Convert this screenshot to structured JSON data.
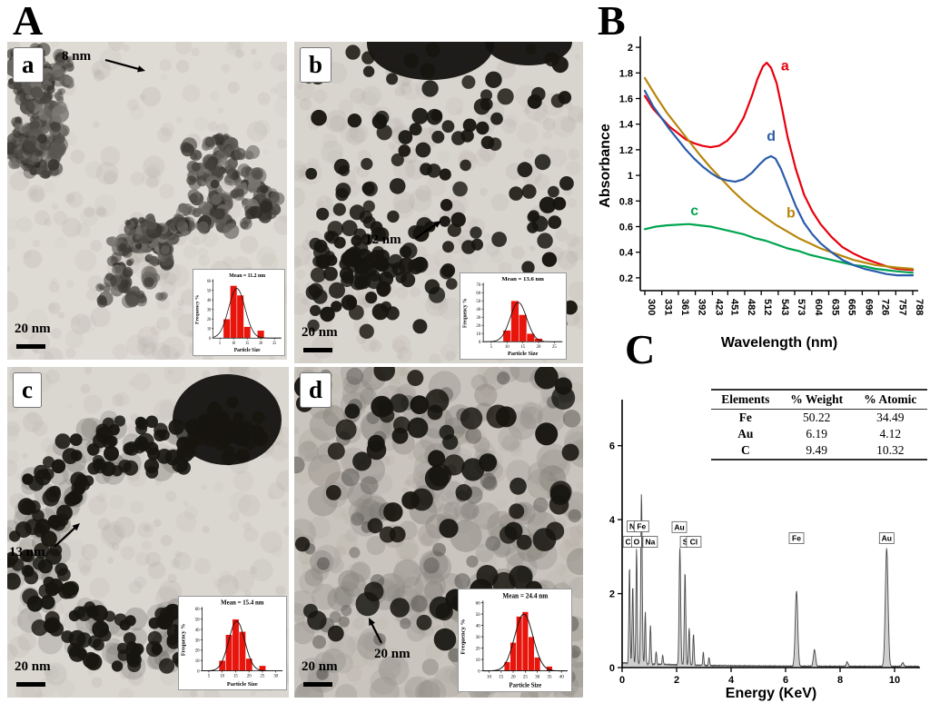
{
  "panel_labels": {
    "A": "A",
    "B": "B",
    "C": "C"
  },
  "tem_panels": {
    "a": {
      "label": "a",
      "annotation": "8 nm",
      "scale_bar": "20 nm"
    },
    "b": {
      "label": "b",
      "annotation": "12 nm",
      "scale_bar": "20 nm"
    },
    "c": {
      "label": "c",
      "annotation": "13 nm",
      "scale_bar": "20 nm"
    },
    "d": {
      "label": "d",
      "annotation": "20 nm",
      "scale_bar": "20 nm"
    }
  },
  "chart_data": [
    {
      "id": "hist_a",
      "type": "bar",
      "title": "Mean = 11.2 nm",
      "xlabel": "Particle Size",
      "ylabel": "Frequency %",
      "x_ticks": [
        5,
        10,
        15,
        20,
        25
      ],
      "x_range": [
        2.5,
        27.5
      ],
      "y_max": 60,
      "y_tick_step": 10,
      "bin_width": 2.5,
      "bars": [
        {
          "x": 7.5,
          "y": 20
        },
        {
          "x": 10,
          "y": 55
        },
        {
          "x": 12.5,
          "y": 45
        },
        {
          "x": 15,
          "y": 12
        },
        {
          "x": 20,
          "y": 8
        }
      ],
      "curve": {
        "mu": 11.2,
        "sigma": 3.0,
        "amp": 52
      }
    },
    {
      "id": "hist_b",
      "type": "bar",
      "title": "Mean = 13.6 nm",
      "xlabel": "Particle Size",
      "ylabel": "Frequency %",
      "x_ticks": [
        5,
        10,
        15,
        20,
        25
      ],
      "x_range": [
        2.5,
        27.5
      ],
      "y_max": 70,
      "y_tick_step": 10,
      "bin_width": 2.5,
      "bars": [
        {
          "x": 10,
          "y": 14
        },
        {
          "x": 12.5,
          "y": 50
        },
        {
          "x": 15,
          "y": 33
        },
        {
          "x": 17.5,
          "y": 10
        },
        {
          "x": 20,
          "y": 4
        }
      ],
      "curve": {
        "mu": 13.6,
        "sigma": 2.6,
        "amp": 48
      }
    },
    {
      "id": "hist_c",
      "type": "bar",
      "title": "Mean = 15.4 nm",
      "xlabel": "Particle Size",
      "ylabel": "Frequency %",
      "x_ticks": [
        5,
        10,
        15,
        20,
        25,
        30
      ],
      "x_range": [
        2.5,
        32.5
      ],
      "y_max": 60,
      "y_tick_step": 10,
      "bin_width": 2.5,
      "bars": [
        {
          "x": 10,
          "y": 10
        },
        {
          "x": 12.5,
          "y": 35
        },
        {
          "x": 15,
          "y": 50
        },
        {
          "x": 17.5,
          "y": 38
        },
        {
          "x": 20,
          "y": 12
        },
        {
          "x": 25,
          "y": 5
        }
      ],
      "curve": {
        "mu": 15.4,
        "sigma": 3.0,
        "amp": 48
      }
    },
    {
      "id": "hist_d",
      "type": "bar",
      "title": "Mean = 24.4 nm",
      "xlabel": "Particle Size",
      "ylabel": "Frequency %",
      "x_ticks": [
        10,
        15,
        20,
        25,
        30,
        35,
        40
      ],
      "x_range": [
        7.5,
        42.5
      ],
      "y_max": 60,
      "y_tick_step": 10,
      "bin_width": 2.5,
      "bars": [
        {
          "x": 17.5,
          "y": 8
        },
        {
          "x": 20,
          "y": 25
        },
        {
          "x": 22.5,
          "y": 48
        },
        {
          "x": 25,
          "y": 52
        },
        {
          "x": 27.5,
          "y": 30
        },
        {
          "x": 30,
          "y": 12
        },
        {
          "x": 35,
          "y": 4
        }
      ],
      "curve": {
        "mu": 24.4,
        "sigma": 3.8,
        "amp": 50
      }
    },
    {
      "id": "uvvis",
      "type": "line",
      "xlabel": "Wavelength (nm)",
      "ylabel": "Absorbance",
      "x_ticks": [
        300,
        331,
        361,
        392,
        423,
        451,
        482,
        512,
        543,
        573,
        604,
        635,
        665,
        696,
        726,
        757,
        788
      ],
      "y_ticks": [
        0.2,
        0.4,
        0.6,
        0.8,
        1,
        1.2,
        1.4,
        1.6,
        1.8,
        2
      ],
      "y_range": [
        0.1,
        2.05
      ],
      "x_range": [
        300,
        788
      ],
      "series": [
        {
          "name": "a",
          "color": "#e8000d",
          "label_at": [
            548,
            1.82
          ],
          "points": [
            [
              300,
              1.62
            ],
            [
              315,
              1.52
            ],
            [
              330,
              1.45
            ],
            [
              345,
              1.38
            ],
            [
              360,
              1.33
            ],
            [
              375,
              1.28
            ],
            [
              390,
              1.25
            ],
            [
              405,
              1.23
            ],
            [
              420,
              1.22
            ],
            [
              435,
              1.23
            ],
            [
              450,
              1.27
            ],
            [
              465,
              1.34
            ],
            [
              480,
              1.45
            ],
            [
              495,
              1.62
            ],
            [
              505,
              1.75
            ],
            [
              515,
              1.85
            ],
            [
              522,
              1.88
            ],
            [
              530,
              1.84
            ],
            [
              540,
              1.72
            ],
            [
              550,
              1.52
            ],
            [
              560,
              1.3
            ],
            [
              575,
              1.05
            ],
            [
              590,
              0.85
            ],
            [
              605,
              0.72
            ],
            [
              620,
              0.62
            ],
            [
              640,
              0.52
            ],
            [
              660,
              0.44
            ],
            [
              680,
              0.39
            ],
            [
              700,
              0.35
            ],
            [
              720,
              0.32
            ],
            [
              740,
              0.29
            ],
            [
              760,
              0.27
            ],
            [
              788,
              0.26
            ]
          ]
        },
        {
          "name": "b",
          "color": "#b8860b",
          "label_at": [
            558,
            0.67
          ],
          "points": [
            [
              300,
              1.76
            ],
            [
              320,
              1.62
            ],
            [
              340,
              1.49
            ],
            [
              360,
              1.38
            ],
            [
              380,
              1.27
            ],
            [
              400,
              1.16
            ],
            [
              420,
              1.06
            ],
            [
              440,
              0.97
            ],
            [
              460,
              0.88
            ],
            [
              480,
              0.8
            ],
            [
              500,
              0.73
            ],
            [
              520,
              0.67
            ],
            [
              540,
              0.61
            ],
            [
              560,
              0.56
            ],
            [
              580,
              0.51
            ],
            [
              600,
              0.47
            ],
            [
              620,
              0.43
            ],
            [
              640,
              0.4
            ],
            [
              660,
              0.37
            ],
            [
              680,
              0.34
            ],
            [
              700,
              0.32
            ],
            [
              720,
              0.3
            ],
            [
              740,
              0.29
            ],
            [
              760,
              0.28
            ],
            [
              788,
              0.27
            ]
          ]
        },
        {
          "name": "c",
          "color": "#00a550",
          "label_at": [
            383,
            0.69
          ],
          "points": [
            [
              300,
              0.58
            ],
            [
              320,
              0.6
            ],
            [
              340,
              0.61
            ],
            [
              360,
              0.615
            ],
            [
              380,
              0.62
            ],
            [
              400,
              0.61
            ],
            [
              420,
              0.6
            ],
            [
              440,
              0.58
            ],
            [
              460,
              0.56
            ],
            [
              480,
              0.54
            ],
            [
              500,
              0.51
            ],
            [
              520,
              0.49
            ],
            [
              540,
              0.46
            ],
            [
              560,
              0.43
            ],
            [
              580,
              0.41
            ],
            [
              600,
              0.38
            ],
            [
              620,
              0.36
            ],
            [
              640,
              0.34
            ],
            [
              660,
              0.32
            ],
            [
              680,
              0.3
            ],
            [
              700,
              0.29
            ],
            [
              720,
              0.27
            ],
            [
              740,
              0.26
            ],
            [
              760,
              0.25
            ],
            [
              788,
              0.24
            ]
          ]
        },
        {
          "name": "d",
          "color": "#2a5caa",
          "label_at": [
            522,
            1.27
          ],
          "points": [
            [
              300,
              1.66
            ],
            [
              315,
              1.54
            ],
            [
              330,
              1.45
            ],
            [
              345,
              1.36
            ],
            [
              360,
              1.28
            ],
            [
              375,
              1.2
            ],
            [
              390,
              1.13
            ],
            [
              405,
              1.07
            ],
            [
              420,
              1.02
            ],
            [
              435,
              0.98
            ],
            [
              450,
              0.96
            ],
            [
              465,
              0.95
            ],
            [
              480,
              0.97
            ],
            [
              495,
              1.02
            ],
            [
              510,
              1.09
            ],
            [
              520,
              1.13
            ],
            [
              530,
              1.15
            ],
            [
              538,
              1.13
            ],
            [
              548,
              1.05
            ],
            [
              560,
              0.92
            ],
            [
              575,
              0.76
            ],
            [
              590,
              0.63
            ],
            [
              605,
              0.54
            ],
            [
              620,
              0.47
            ],
            [
              640,
              0.4
            ],
            [
              660,
              0.34
            ],
            [
              680,
              0.3
            ],
            [
              700,
              0.27
            ],
            [
              720,
              0.25
            ],
            [
              740,
              0.23
            ],
            [
              760,
              0.22
            ],
            [
              788,
              0.22
            ]
          ]
        }
      ]
    },
    {
      "id": "edx",
      "type": "area",
      "xlabel": "Energy (KeV)",
      "x_ticks": [
        0,
        2,
        4,
        6,
        8,
        10
      ],
      "y_ticks": [
        0,
        2,
        4,
        6
      ],
      "y_range": [
        0,
        7
      ],
      "x_range": [
        0,
        10.9
      ],
      "peaks": [
        [
          0.27,
          2.6,
          0.022
        ],
        [
          0.39,
          2.1,
          0.022
        ],
        [
          0.53,
          3.1,
          0.022
        ],
        [
          0.71,
          4.6,
          0.026
        ],
        [
          0.85,
          1.4,
          0.02
        ],
        [
          1.04,
          1.05,
          0.022
        ],
        [
          1.25,
          0.35,
          0.02
        ],
        [
          1.49,
          0.25,
          0.02
        ],
        [
          2.12,
          3.2,
          0.028
        ],
        [
          2.31,
          2.5,
          0.026
        ],
        [
          2.46,
          1.0,
          0.022
        ],
        [
          2.62,
          0.85,
          0.022
        ],
        [
          2.98,
          0.35,
          0.02
        ],
        [
          3.19,
          0.22,
          0.02
        ],
        [
          6.4,
          2.05,
          0.045
        ],
        [
          7.06,
          0.45,
          0.04
        ],
        [
          8.26,
          0.12,
          0.035
        ],
        [
          9.71,
          3.2,
          0.05
        ],
        [
          10.3,
          0.1,
          0.04
        ]
      ],
      "element_labels": [
        [
          "C",
          0.22,
          3.4
        ],
        [
          "O",
          0.53,
          3.4
        ],
        [
          "Na",
          1.03,
          3.4
        ],
        [
          "N",
          0.37,
          3.82
        ],
        [
          "Fe",
          0.71,
          3.82
        ],
        [
          "Au",
          2.1,
          3.8
        ],
        [
          "S",
          2.32,
          3.4
        ],
        [
          "Cl",
          2.63,
          3.4
        ],
        [
          "Fe",
          6.4,
          3.5
        ],
        [
          "Au",
          9.71,
          3.5
        ]
      ],
      "table": {
        "headers": [
          "Elements",
          "% Weight",
          "% Atomic"
        ],
        "rows": [
          [
            "Fe",
            "50.22",
            "34.49"
          ],
          [
            "Au",
            "6.19",
            "4.12"
          ],
          [
            "C",
            "9.49",
            "10.32"
          ]
        ]
      }
    }
  ]
}
